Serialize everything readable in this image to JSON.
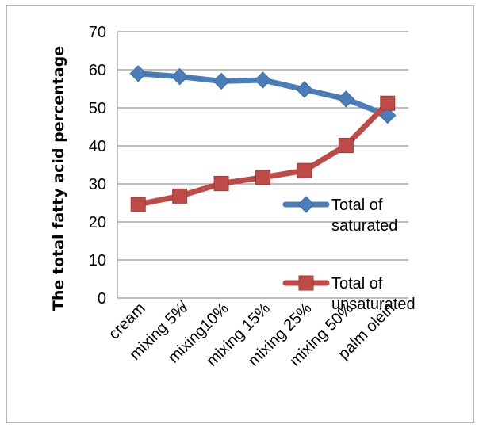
{
  "chart_data": {
    "type": "line",
    "title": "",
    "xlabel": "",
    "ylabel": "The total fatty acid  percentage",
    "ylim": [
      0,
      70
    ],
    "yticks": [
      "0",
      "10",
      "20",
      "30",
      "40",
      "50",
      "60",
      "70"
    ],
    "grid": true,
    "legend_position": "right",
    "categories": [
      "cream",
      "mixing 5%̸",
      "mixing10%",
      "mixing 15%",
      "mixing 25%",
      "mixing 50%",
      "palm olein"
    ],
    "series": [
      {
        "name": "Total of saturated",
        "name_lines": [
          "Total of",
          "saturated"
        ],
        "color": "#4a7ebb",
        "marker": "diamond",
        "values": [
          59,
          58.2,
          57,
          57.3,
          54.8,
          52.3,
          48
        ]
      },
      {
        "name": "Total of unsaturated",
        "name_lines": [
          "Total of",
          "unsaturated"
        ],
        "color": "#be4b48",
        "marker": "square",
        "values": [
          24.6,
          26.8,
          30.1,
          31.7,
          33.5,
          40.1,
          51.2
        ]
      }
    ]
  }
}
